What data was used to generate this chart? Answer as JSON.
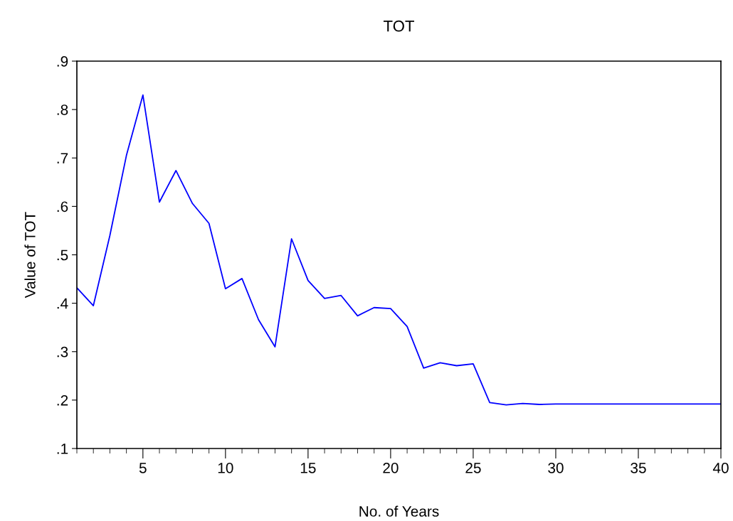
{
  "chart_data": {
    "type": "line",
    "title": "TOT",
    "xlabel": "No. of Years",
    "ylabel": "Value of TOT",
    "x": [
      1,
      2,
      3,
      4,
      5,
      6,
      7,
      8,
      9,
      10,
      11,
      12,
      13,
      14,
      15,
      16,
      17,
      18,
      19,
      20,
      21,
      22,
      23,
      24,
      25,
      26,
      27,
      28,
      29,
      30,
      31,
      32,
      33,
      34,
      35,
      36,
      37,
      38,
      39,
      40
    ],
    "series": [
      {
        "color": "#0000ff",
        "values": [
          0.432,
          0.395,
          0.54,
          0.705,
          0.83,
          0.609,
          0.674,
          0.606,
          0.565,
          0.43,
          0.451,
          0.366,
          0.31,
          0.533,
          0.447,
          0.41,
          0.416,
          0.374,
          0.391,
          0.389,
          0.352,
          0.266,
          0.277,
          0.271,
          0.275,
          0.195,
          0.19,
          0.193,
          0.191,
          0.192,
          0.192,
          0.192,
          0.192,
          0.192,
          0.192,
          0.192,
          0.192,
          0.192,
          0.192,
          0.192
        ]
      }
    ],
    "xlim": [
      1,
      40
    ],
    "xticks": [
      {
        "value": 1,
        "label": null
      },
      {
        "value": 2,
        "label": null
      },
      {
        "value": 3,
        "label": null
      },
      {
        "value": 4,
        "label": null
      },
      5,
      {
        "value": 6,
        "label": null
      },
      {
        "value": 7,
        "label": null
      },
      {
        "value": 8,
        "label": null
      },
      {
        "value": 9,
        "label": null
      },
      10,
      {
        "value": 11,
        "label": null
      },
      {
        "value": 12,
        "label": null
      },
      {
        "value": 13,
        "label": null
      },
      {
        "value": 14,
        "label": null
      },
      15,
      {
        "value": 16,
        "label": null
      },
      {
        "value": 17,
        "label": null
      },
      {
        "value": 18,
        "label": null
      },
      {
        "value": 19,
        "label": null
      },
      20,
      {
        "value": 21,
        "label": null
      },
      {
        "value": 22,
        "label": null
      },
      {
        "value": 23,
        "label": null
      },
      {
        "value": 24,
        "label": null
      },
      25,
      {
        "value": 26,
        "label": null
      },
      {
        "value": 27,
        "label": null
      },
      {
        "value": 28,
        "label": null
      },
      {
        "value": 29,
        "label": null
      },
      30,
      {
        "value": 31,
        "label": null
      },
      {
        "value": 32,
        "label": null
      },
      {
        "value": 33,
        "label": null
      },
      {
        "value": 34,
        "label": null
      },
      35,
      {
        "value": 36,
        "label": null
      },
      {
        "value": 37,
        "label": null
      },
      {
        "value": 38,
        "label": null
      },
      {
        "value": 39,
        "label": null
      },
      40
    ],
    "ylim": [
      0.1,
      0.9
    ],
    "yticks": [
      {
        "value": 0.1,
        "label": ".1"
      },
      {
        "value": 0.2,
        "label": ".2"
      },
      {
        "value": 0.3,
        "label": ".3"
      },
      {
        "value": 0.4,
        "label": ".4"
      },
      {
        "value": 0.5,
        "label": ".5"
      },
      {
        "value": 0.6,
        "label": ".6"
      },
      {
        "value": 0.7,
        "label": ".7"
      },
      {
        "value": 0.8,
        "label": ".8"
      },
      {
        "value": 0.9,
        "label": ".9"
      }
    ],
    "grid": false,
    "marker": "none",
    "line_style": "solid"
  }
}
